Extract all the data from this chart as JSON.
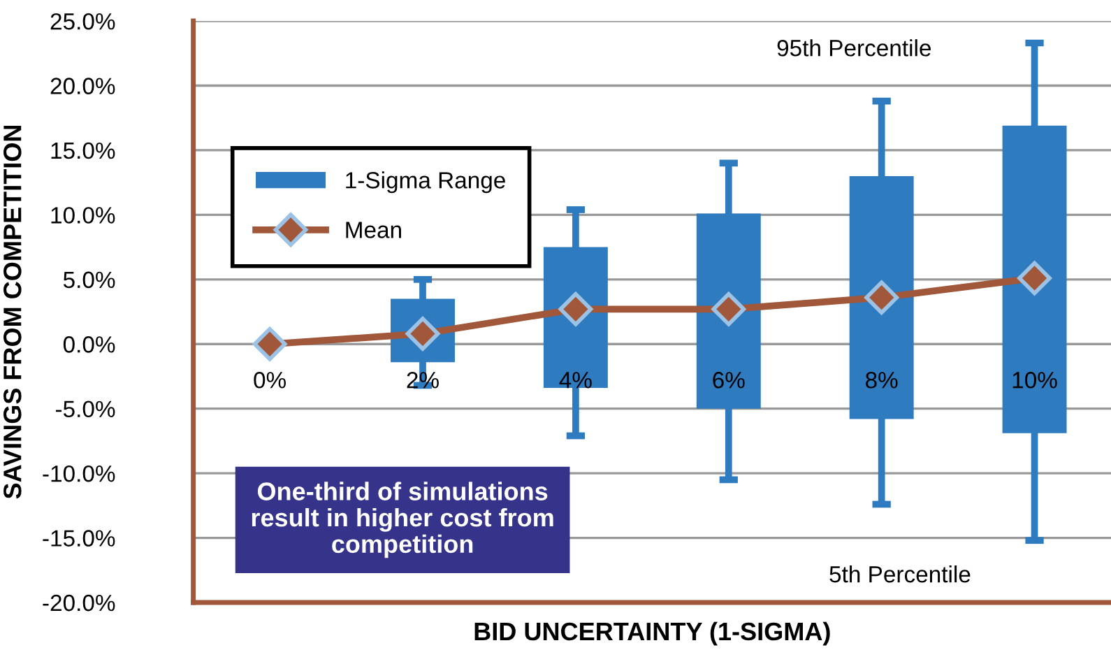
{
  "chart_data": {
    "type": "box",
    "xlabel": "BID UNCERTAINTY (1-SIGMA)",
    "ylabel": "SAVINGS FROM COMPETITION",
    "categories": [
      "0%",
      "2%",
      "4%",
      "6%",
      "8%",
      "10%"
    ],
    "series": [
      {
        "name": "1-Sigma Range",
        "color": "#2e7bbf",
        "boxes": [
          {
            "low": 0,
            "q1": 0,
            "q3": 0,
            "high": 0
          },
          {
            "low": -3.2,
            "q1": -1.4,
            "q3": 3.5,
            "high": 5.0
          },
          {
            "low": -7.1,
            "q1": -3.4,
            "q3": 7.5,
            "high": 10.4
          },
          {
            "low": -10.5,
            "q1": -5.0,
            "q3": 10.1,
            "high": 14.0
          },
          {
            "low": -12.4,
            "q1": -5.8,
            "q3": 13.0,
            "high": 18.8
          },
          {
            "low": -15.2,
            "q1": -6.9,
            "q3": 16.9,
            "high": 23.3
          }
        ]
      },
      {
        "name": "Mean",
        "type": "line",
        "color": "#a0573a",
        "marker": "diamond",
        "line_style": "solid",
        "values": [
          0,
          0.8,
          2.7,
          2.7,
          3.6,
          5.1
        ]
      }
    ],
    "ylim": [
      -20,
      25
    ],
    "yticks": [
      {
        "value": -20,
        "label": "-20.0%"
      },
      {
        "value": -15,
        "label": "-15.0%"
      },
      {
        "value": -10,
        "label": "-10.0%"
      },
      {
        "value": -5,
        "label": "-5.0%"
      },
      {
        "value": 0,
        "label": "0.0%"
      },
      {
        "value": 5,
        "label": "5.0%"
      },
      {
        "value": 10,
        "label": "10.0%"
      },
      {
        "value": 15,
        "label": "15.0%"
      },
      {
        "value": 20,
        "label": "20.0%"
      },
      {
        "value": 25,
        "label": "25.0%"
      }
    ],
    "grid": "y",
    "legend": "left",
    "annotations": [
      "95th Percentile",
      "5th Percentile",
      "One-third of simulations\nresult in higher cost from\ncompetition"
    ]
  }
}
